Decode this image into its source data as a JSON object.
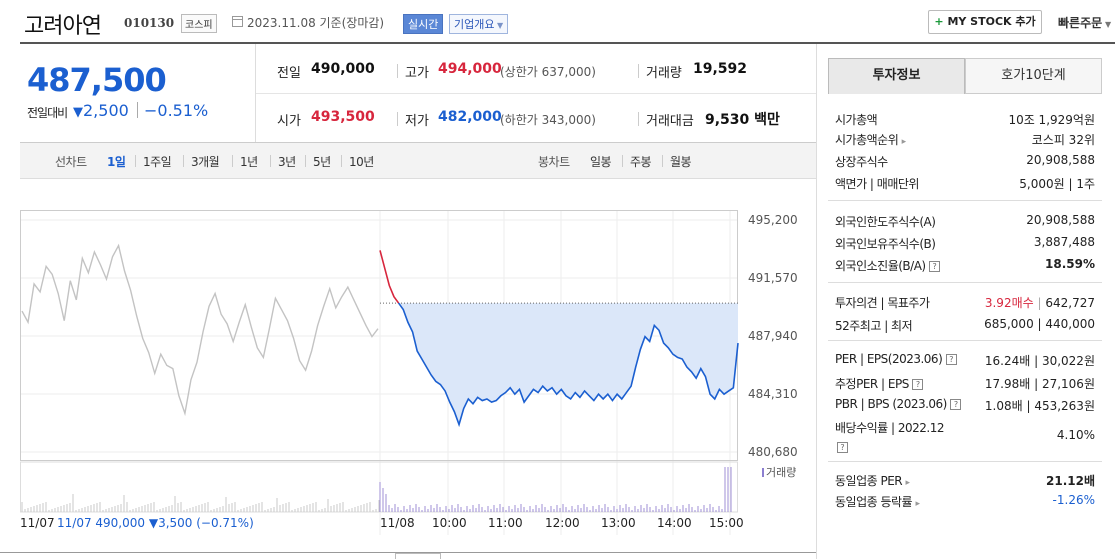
{
  "header": {
    "company_name": "고려아연",
    "code": "010130",
    "market": "코스피",
    "date": "2023.11.08 기준(장마감)",
    "realtime": "실시간",
    "overview": "기업개요",
    "mystock_plus": "+",
    "mystock": "MY STOCK 추가",
    "quick_order": "빠른주문"
  },
  "price": {
    "current": "487,500",
    "prev_diff_label": "전일대비",
    "diff_arrow": "▼",
    "diff": "2,500",
    "diff_pct": "−0.51%"
  },
  "quote": {
    "prev_close_label": "전일",
    "prev_close": "490,000",
    "high_label": "고가",
    "high": "494,000",
    "upper_limit": "(상한가 637,000)",
    "volume_label": "거래량",
    "volume": "19,592",
    "open_label": "시가",
    "open": "493,500",
    "low_label": "저가",
    "low": "482,000",
    "lower_limit": "(하한가 343,000)",
    "amount_label": "거래대금",
    "amount": "9,530",
    "amount_unit": "백만"
  },
  "toolbar": {
    "line_chart": "선차트",
    "periods": [
      "1일",
      "1주일",
      "3개월",
      "1년",
      "3년",
      "5년",
      "10년"
    ],
    "candle_chart": "봉차트",
    "candle_periods": [
      "일봉",
      "주봉",
      "월봉"
    ]
  },
  "chart_data": {
    "type": "line",
    "y_ticks": [
      "495,200",
      "491,570",
      "487,940",
      "484,310",
      "480,680"
    ],
    "ylim": [
      480680,
      495200
    ],
    "prev_close": 490000,
    "volume_label": "거래량",
    "x_labels": [
      "11/07",
      "11/08",
      "10:00",
      "11:00",
      "12:00",
      "13:00",
      "14:00",
      "15:00"
    ],
    "prev_day_summary": "11/07 490,000 ▼3,500 (−0.71%)",
    "grid": true,
    "series": [
      {
        "values": [
          489500,
          488800,
          491200,
          490700,
          492300,
          491800,
          490600,
          488900,
          491400,
          490200,
          492800,
          491900,
          493200,
          492400,
          491500,
          492900,
          493600,
          492000,
          490800,
          489200,
          487800,
          486900,
          485600,
          486800,
          486100,
          485900,
          484200,
          483100,
          485200,
          486300,
          488200,
          489800,
          490600,
          489300,
          488700,
          487600,
          488800,
          489900,
          488500,
          487200,
          486600,
          488400,
          490300,
          489600,
          488900,
          487800,
          486400,
          485800,
          487000,
          488600,
          489800,
          490900,
          489700,
          490400,
          491000,
          490200,
          489400,
          488600,
          487900,
          488400
        ]
      },
      {
        "values": [
          493300,
          492200,
          491100,
          490400,
          490000,
          489600,
          488800,
          488200,
          487000,
          486500,
          486000,
          485500,
          485100,
          484900,
          484500,
          483800,
          483200,
          482400,
          483400,
          484000,
          483700,
          484100,
          483900,
          484000,
          483800,
          483900,
          484200,
          484400,
          484700,
          484300,
          484600,
          483800,
          484200,
          484600,
          484400,
          484800,
          484500,
          484700,
          484300,
          484600,
          484200,
          484000,
          484400,
          484100,
          484500,
          484200,
          483900,
          484300,
          484000,
          484300,
          483900,
          484300,
          484000,
          484400,
          484800,
          486000,
          487100,
          487900,
          487600,
          488600,
          488300,
          487500,
          487200,
          486800,
          486600,
          486500,
          486000,
          485700,
          485300,
          485900,
          485400,
          484300,
          484000,
          484600,
          484300,
          484500,
          484700,
          487500
        ]
      }
    ]
  },
  "right": {
    "tab_invest": "투자정보",
    "tab_hoga": "호가10단계",
    "rows1": [
      {
        "label": "시가총액",
        "value": "10조 1,929억원"
      },
      {
        "label": "시가총액순위",
        "value": "코스피 32위"
      },
      {
        "label": "상장주식수",
        "value": "20,908,588"
      },
      {
        "label": "액면가 | 매매단위",
        "value": "5,000원 | 1주"
      }
    ],
    "rows2": [
      {
        "label": "외국인한도주식수(A)",
        "value": "20,908,588"
      },
      {
        "label": "외국인보유주식수(B)",
        "value": "3,887,488"
      },
      {
        "label": "외국인소진율(B/A)",
        "value": "18.59%"
      }
    ],
    "opinion_label": "투자의견 | 목표주가",
    "opinion_value": "3.92매수",
    "target_price": "642,727",
    "week52_label": "52주최고 | 최저",
    "week52_value": "685,000 | 440,000",
    "per_label": "PER | EPS(2023.06)",
    "per_value": "16.24배 | 30,022원",
    "est_per_label": "추정PER | EPS",
    "est_per_value": "17.98배 | 27,106원",
    "pbr_label": "PBR | BPS (2023.06)",
    "pbr_value": "1.08배 | 453,263원",
    "div_label": "배당수익률 | 2022.12",
    "div_value": "4.10%",
    "industry_per_label": "동일업종 PER",
    "industry_per_value": "21.12배",
    "industry_chg_label": "동일업종 등락률",
    "industry_chg_value": "-1.26%",
    "colors": {
      "up": "#d7263d",
      "down": "#1b5fd0"
    }
  }
}
